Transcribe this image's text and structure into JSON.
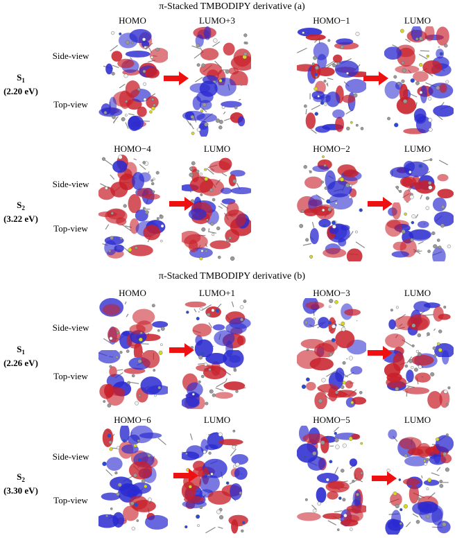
{
  "panels": [
    {
      "title": "π-Stacked TMBODIPY derivative (a)",
      "view_labels": [
        "Side-view",
        "Top-view"
      ],
      "rows": [
        {
          "state_letter": "S",
          "state_sub": "1",
          "energy": "(2.20 eV)",
          "orbitals": [
            "HOMO",
            "LUMO+3",
            "HOMO−1",
            "LUMO"
          ]
        },
        {
          "state_letter": "S",
          "state_sub": "2",
          "energy": "(3.22 eV)",
          "orbitals": [
            "HOMO−4",
            "LUMO",
            "HOMO−2",
            "LUMO"
          ]
        }
      ]
    },
    {
      "title": "π-Stacked TMBODIPY derivative (b)",
      "view_labels": [
        "Side-view",
        "Top-view"
      ],
      "rows": [
        {
          "state_letter": "S",
          "state_sub": "1",
          "energy": "(2.26 eV)",
          "orbitals": [
            "HOMO",
            "LUMO+1",
            "HOMO−3",
            "LUMO"
          ]
        },
        {
          "state_letter": "S",
          "state_sub": "2",
          "energy": "(3.30 eV)",
          "orbitals": [
            "HOMO−6",
            "LUMO",
            "HOMO−5",
            "LUMO"
          ]
        }
      ]
    }
  ],
  "colors": {
    "lobe_red": "#c8202a",
    "lobe_blue": "#2a2ad0",
    "arrow": "#ee1111",
    "atom_gray": "#888888"
  }
}
